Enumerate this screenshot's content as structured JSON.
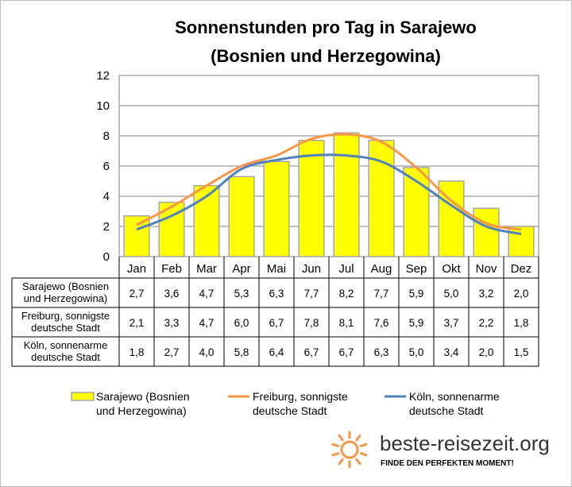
{
  "chart_data": {
    "type": "bar",
    "title": [
      "Sonnenstunden pro Tag in Sarajewo",
      "(Bosnien und Herzegowina)"
    ],
    "categories": [
      "Jan",
      "Feb",
      "Mar",
      "Apr",
      "Mai",
      "Jun",
      "Jul",
      "Aug",
      "Sep",
      "Okt",
      "Nov",
      "Dez"
    ],
    "ylim": [
      0,
      12
    ],
    "yticks": [
      0,
      2,
      4,
      6,
      8,
      10,
      12
    ],
    "grid": true,
    "series": [
      {
        "name": "Sarajewo (Bosnien und Herzegowina)",
        "label_lines": [
          "Sarajewo (Bosnien",
          "und Herzegowina)"
        ],
        "kind": "bar",
        "color": "#ffff00",
        "edge": "#a6a6a6",
        "values": [
          2.7,
          3.6,
          4.7,
          5.3,
          6.3,
          7.7,
          8.2,
          7.7,
          5.9,
          5.0,
          3.2,
          2.0
        ],
        "display": [
          "2,7",
          "3,6",
          "4,7",
          "5,3",
          "6,3",
          "7,7",
          "8,2",
          "7,7",
          "5,9",
          "5,0",
          "3,2",
          "2,0"
        ]
      },
      {
        "name": "Freiburg, sonnigste deutsche Stadt",
        "label_lines": [
          "Freiburg, sonnigste",
          "deutsche Stadt"
        ],
        "kind": "line",
        "color": "#f79646",
        "values": [
          2.1,
          3.3,
          4.7,
          6.0,
          6.7,
          7.8,
          8.1,
          7.6,
          5.9,
          3.7,
          2.2,
          1.8
        ],
        "display": [
          "2,1",
          "3,3",
          "4,7",
          "6,0",
          "6,7",
          "7,8",
          "8,1",
          "7,6",
          "5,9",
          "3,7",
          "2,2",
          "1,8"
        ]
      },
      {
        "name": "Köln, sonnenarme deutsche Stadt",
        "label_lines": [
          "Köln, sonnenarme",
          "deutsche Stadt"
        ],
        "kind": "line",
        "color": "#4f81bd",
        "values": [
          1.8,
          2.7,
          4.0,
          5.8,
          6.4,
          6.7,
          6.7,
          6.3,
          5.0,
          3.4,
          2.0,
          1.5
        ],
        "display": [
          "1,8",
          "2,7",
          "4,0",
          "5,8",
          "6,4",
          "6,7",
          "6,7",
          "6,3",
          "5,0",
          "3,4",
          "2,0",
          "1,5"
        ]
      }
    ],
    "legend_position": "bottom"
  },
  "brand": {
    "name": "beste-reisezeit.org",
    "slogan": "FINDE DEN PERFEKTEN MOMENT!",
    "sun_color": "#f79646"
  }
}
